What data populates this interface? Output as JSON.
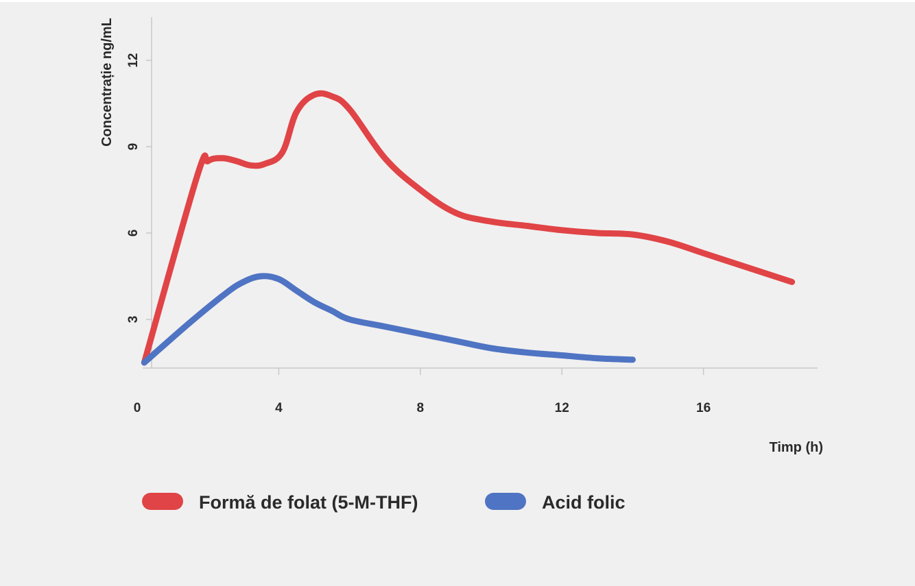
{
  "colors": {
    "background": "#f1f0f0",
    "axis": "#c8c8c8",
    "text": "#2a2a2a"
  },
  "chart_data": {
    "type": "line",
    "title": "",
    "xlabel": "Timp (h)",
    "ylabel": "Concentrație ng/mL",
    "xlim": [
      0,
      19
    ],
    "ylim": [
      1.5,
      13.5
    ],
    "x_ticks": [
      0,
      4,
      8,
      12,
      16
    ],
    "y_ticks": [
      3,
      6,
      9,
      12
    ],
    "grid": false,
    "legend_position": "bottom-left",
    "series": [
      {
        "name": "Formă de folat (5-M-THF)",
        "color": "#e04446",
        "x": [
          0.2,
          1.7,
          2.0,
          2.4,
          2.8,
          3.2,
          3.6,
          4.1,
          4.5,
          5.0,
          5.5,
          6.0,
          7.0,
          8.0,
          9.0,
          10.0,
          11.0,
          12.0,
          13.0,
          14.0,
          15.0,
          16.0,
          17.0,
          18.5
        ],
        "y": [
          1.5,
          8.0,
          8.5,
          8.6,
          8.5,
          8.35,
          8.4,
          8.8,
          10.2,
          10.8,
          10.75,
          10.3,
          8.6,
          7.5,
          6.7,
          6.4,
          6.25,
          6.1,
          6.0,
          5.95,
          5.7,
          5.3,
          4.9,
          4.3
        ]
      },
      {
        "name": "Acid folic",
        "color": "#4f74c3",
        "x": [
          0.2,
          1.5,
          2.5,
          3.0,
          3.5,
          4.0,
          4.5,
          5.0,
          5.5,
          6.0,
          7.0,
          8.0,
          9.0,
          10.0,
          11.0,
          12.0,
          13.0,
          14.0
        ],
        "y": [
          1.5,
          2.9,
          3.9,
          4.3,
          4.5,
          4.4,
          4.0,
          3.6,
          3.3,
          3.0,
          2.75,
          2.5,
          2.25,
          2.0,
          1.85,
          1.75,
          1.65,
          1.6
        ]
      }
    ]
  }
}
